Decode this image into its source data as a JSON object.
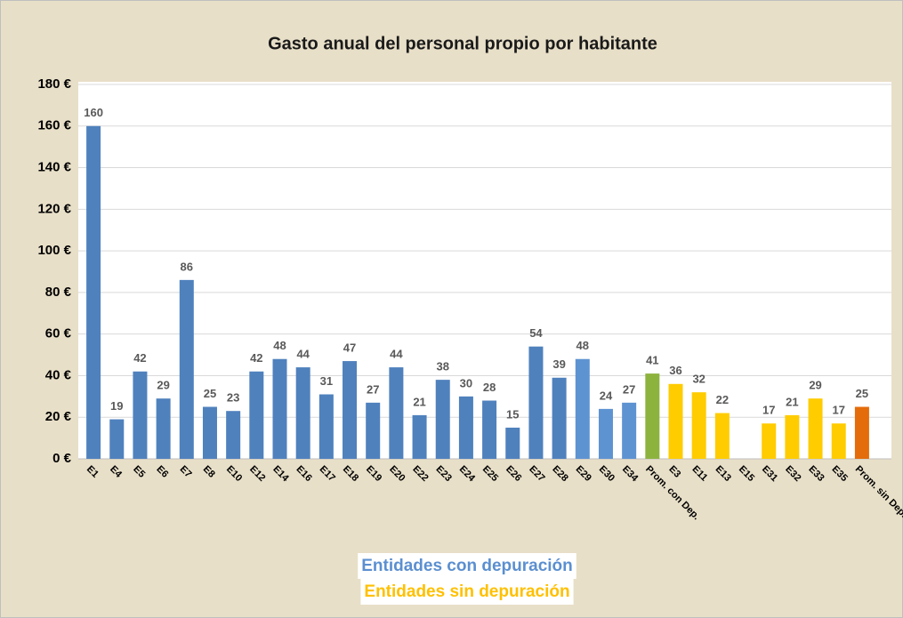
{
  "chart_data": {
    "type": "bar",
    "title": "Gasto anual del personal propio por habitante",
    "categories": [
      "E1",
      "E4",
      "E5",
      "E6",
      "E7",
      "E8",
      "E10",
      "E12",
      "E14",
      "E16",
      "E17",
      "E18",
      "E19",
      "E20",
      "E22",
      "E23",
      "E24",
      "E25",
      "E26",
      "E27",
      "E28",
      "E29",
      "E30",
      "E34",
      "Prom. con Dep.",
      "E3",
      "E11",
      "E13",
      "E15",
      "E31",
      "E32",
      "E33",
      "E35",
      "Prom. sin Dep."
    ],
    "values": [
      160,
      19,
      42,
      29,
      86,
      25,
      23,
      42,
      48,
      44,
      31,
      47,
      27,
      44,
      21,
      38,
      30,
      28,
      15,
      54,
      39,
      48,
      24,
      27,
      41,
      36,
      32,
      22,
      null,
      17,
      21,
      29,
      17,
      25
    ],
    "colors": [
      "#4f81bd",
      "#4f81bd",
      "#4f81bd",
      "#4f81bd",
      "#4f81bd",
      "#4f81bd",
      "#4f81bd",
      "#4f81bd",
      "#4f81bd",
      "#4f81bd",
      "#4f81bd",
      "#4f81bd",
      "#4f81bd",
      "#4f81bd",
      "#4f81bd",
      "#4f81bd",
      "#4f81bd",
      "#4f81bd",
      "#4f81bd",
      "#4f81bd",
      "#4f81bd",
      "#5e93d1",
      "#5e93d1",
      "#5e93d1",
      "#8db33f",
      "#ffcc00",
      "#ffcc00",
      "#ffcc00",
      "#ffcc00",
      "#ffcc00",
      "#ffcc00",
      "#ffcc00",
      "#ffcc00",
      "#e46c0a"
    ],
    "ylim": [
      0,
      180
    ],
    "yticks": [
      {
        "value": 0,
        "label": "0 €"
      },
      {
        "value": 20,
        "label": "20 €"
      },
      {
        "value": 40,
        "label": "40 €"
      },
      {
        "value": 60,
        "label": "60 €"
      },
      {
        "value": 80,
        "label": "80 €"
      },
      {
        "value": 100,
        "label": "100 €"
      },
      {
        "value": 120,
        "label": "120 €"
      },
      {
        "value": 140,
        "label": "140 €"
      },
      {
        "value": 160,
        "label": "160 €"
      },
      {
        "value": 180,
        "label": "180 €"
      }
    ],
    "grid": true,
    "legend": [
      {
        "name": "Entidades con depuración",
        "color": "#5b8fd0"
      },
      {
        "name": "Entidades sin depuración",
        "color": "#ffc000"
      }
    ]
  }
}
